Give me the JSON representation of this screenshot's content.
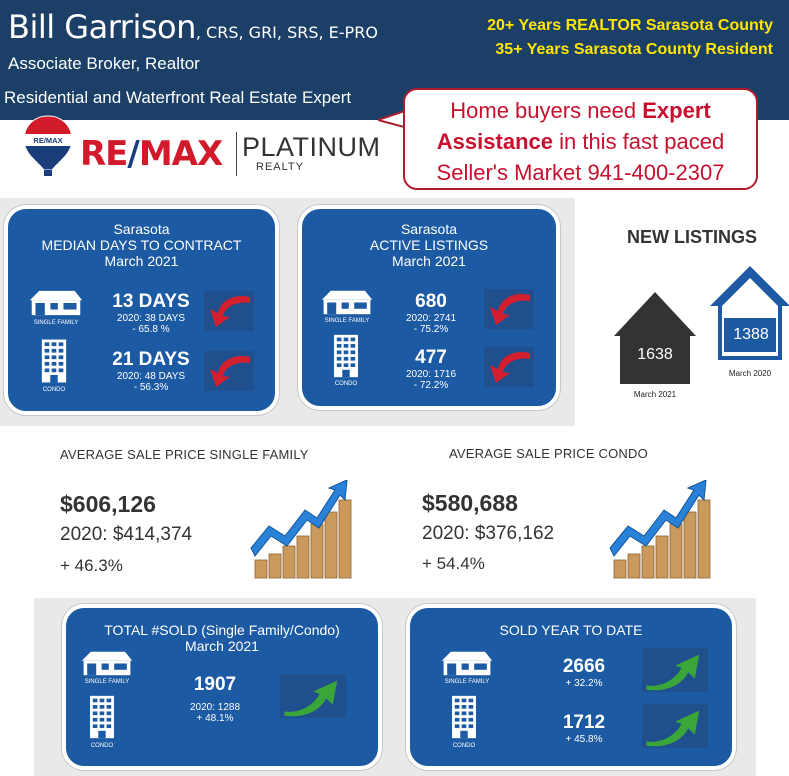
{
  "header": {
    "name": "Bill Garrison",
    "credentials": ", CRS, GRI, SRS, E-PRO",
    "title": "Associate Broker, Realtor",
    "specialty": "Residential and Waterfront Real Estate Expert",
    "years_realtor": "20+ Years REALTOR Sarasota County",
    "years_resident": "35+ Years Sarasota County Resident"
  },
  "callout": {
    "line1_pre": "Home buyers need ",
    "line1_bold": "Expert",
    "line2_bold": "Assistance",
    "line2_post": " in this fast paced",
    "line3": "Seller's Market 941-400-2307"
  },
  "logo": {
    "balloon_text": "RE/MAX",
    "brand_re": "RE",
    "brand_slash": "/",
    "brand_max": "MAX",
    "platinum": "PLATINUM",
    "realty": "REALTY"
  },
  "median_days": {
    "head1": "Sarasota",
    "head2": "MEDIAN DAYS TO CONTRACT",
    "head3": "March 2021",
    "single_family": {
      "value": "13 DAYS",
      "prev": "2020: 38 DAYS",
      "change": "- 65.8 %",
      "icon_label": "SINGLE FAMILY"
    },
    "condo": {
      "value": "21 DAYS",
      "prev": "2020: 48 DAYS",
      "change": "- 56.3%",
      "icon_label": "CONDO"
    }
  },
  "active_listings": {
    "head1": "Sarasota",
    "head2": "ACTIVE LISTINGS",
    "head3": "March 2021",
    "single_family": {
      "value": "680",
      "prev": "2020: 2741",
      "change": "- 75.2%",
      "icon_label": "SINGLE FAMILY"
    },
    "condo": {
      "value": "477",
      "prev": "2020: 1716",
      "change": "- 72.2%",
      "icon_label": "CONDO"
    }
  },
  "new_listings": {
    "title": "NEW LISTINGS",
    "current": {
      "value": "1638",
      "label": "March 2021"
    },
    "previous": {
      "value": "1388",
      "label": "March 2020"
    }
  },
  "avg_single_family": {
    "title": "AVERAGE SALE PRICE SINGLE FAMILY",
    "price": "$606,126",
    "prev": "2020: $414,374",
    "change": "+ 46.3%"
  },
  "avg_condo": {
    "title": "AVERAGE SALE PRICE CONDO",
    "price": "$580,688",
    "prev": "2020: $376,162",
    "change": "+ 54.4%"
  },
  "total_sold": {
    "head1": "TOTAL #SOLD (Single Family/Condo)",
    "head2": "March 2021",
    "value": "1907",
    "prev": "2020: 1288",
    "change": "+ 48.1%",
    "sf_label": "SINGLE FAMILY",
    "condo_label": "CONDO"
  },
  "sold_ytd": {
    "head1": "SOLD YEAR TO DATE",
    "single_family": {
      "value": "2666",
      "change": "+ 32.2%",
      "icon_label": "SINGLE FAMILY"
    },
    "condo": {
      "value": "1712",
      "change": "+ 45.8%",
      "icon_label": "CONDO"
    }
  },
  "colors": {
    "header_bg": "#1b3f66",
    "card_blue": "#1c5aa3",
    "accent_yellow": "#ffe600",
    "remax_red": "#d11a2a",
    "down_arrow_red": "#d3202f",
    "up_arrow_green": "#3aa63a"
  },
  "icons": [
    "house-icon",
    "condo-building-icon",
    "down-arrow-icon",
    "up-arrow-icon",
    "rising-chart-icon",
    "remax-balloon-icon"
  ]
}
